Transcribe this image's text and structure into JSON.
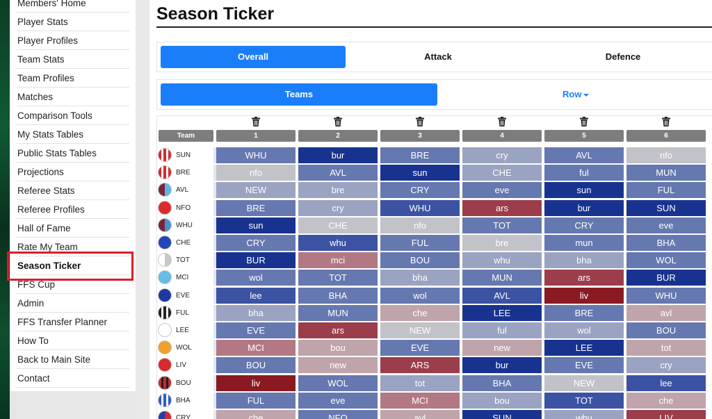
{
  "sidebar": {
    "items": [
      {
        "label": "Members' Home",
        "active": false
      },
      {
        "label": "Player Stats",
        "active": false
      },
      {
        "label": "Player Profiles",
        "active": false
      },
      {
        "label": "Team Stats",
        "active": false
      },
      {
        "label": "Team Profiles",
        "active": false
      },
      {
        "label": "Matches",
        "active": false
      },
      {
        "label": "Comparison Tools",
        "active": false
      },
      {
        "label": "My Stats Tables",
        "active": false
      },
      {
        "label": "Public Stats Tables",
        "active": false
      },
      {
        "label": "Projections",
        "active": false
      },
      {
        "label": "Referee Stats",
        "active": false
      },
      {
        "label": "Referee Profiles",
        "active": false
      },
      {
        "label": "Hall of Fame",
        "active": false
      },
      {
        "label": "Rate My Team",
        "active": false
      },
      {
        "label": "Season Ticker",
        "active": true
      },
      {
        "label": "FFS Cup",
        "active": false
      },
      {
        "label": "Admin",
        "active": false
      },
      {
        "label": "FFS Transfer Planner",
        "active": false
      },
      {
        "label": "How To",
        "active": false
      },
      {
        "label": "Back to Main Site",
        "active": false
      },
      {
        "label": "Contact",
        "active": false
      }
    ]
  },
  "header": {
    "title": "Season Ticker"
  },
  "tabs": [
    {
      "label": "Overall",
      "active": true
    },
    {
      "label": "Attack",
      "active": false
    },
    {
      "label": "Defence",
      "active": false
    }
  ],
  "subtabs": {
    "teams_label": "Teams",
    "row_label": "Row"
  },
  "table": {
    "team_header": "Team",
    "delete_icon": "trash-icon",
    "columns": [
      "1",
      "2",
      "3",
      "4",
      "5",
      "6"
    ],
    "rows": [
      {
        "team": "SUN",
        "badge": [
          "#d12a30",
          "#ffffff"
        ],
        "badge_style": "stripes",
        "fixtures": [
          "WHU",
          "bur",
          "BRE",
          "cry",
          "AVL",
          "nfo"
        ],
        "levels": [
          3,
          5,
          3,
          2,
          3,
          1
        ]
      },
      {
        "team": "BRE",
        "badge": [
          "#d12a30",
          "#ffffff"
        ],
        "badge_style": "stripes",
        "fixtures": [
          "nfo",
          "AVL",
          "sun",
          "CHE",
          "ful",
          "MUN"
        ],
        "levels": [
          1,
          3,
          5,
          2,
          3,
          3
        ]
      },
      {
        "team": "AVL",
        "badge": [
          "#7a263a",
          "#5fb4e6"
        ],
        "badge_style": "half",
        "fixtures": [
          "NEW",
          "bre",
          "CRY",
          "eve",
          "sun",
          "FUL"
        ],
        "levels": [
          2,
          2,
          3,
          3,
          5,
          3
        ]
      },
      {
        "team": "NFO",
        "badge": [
          "#dd2a2a",
          "#dd2a2a"
        ],
        "badge_style": "solid",
        "fixtures": [
          "BRE",
          "cry",
          "WHU",
          "ars",
          "bur",
          "SUN"
        ],
        "levels": [
          3,
          2,
          4,
          8,
          5,
          5
        ]
      },
      {
        "team": "WHU",
        "badge": [
          "#7a263a",
          "#4a90d0"
        ],
        "badge_style": "half",
        "fixtures": [
          "sun",
          "CHE",
          "nfo",
          "TOT",
          "CRY",
          "eve"
        ],
        "levels": [
          5,
          1,
          1,
          3,
          3,
          3
        ]
      },
      {
        "team": "CHE",
        "badge": [
          "#2345b5",
          "#2345b5"
        ],
        "badge_style": "solid",
        "fixtures": [
          "CRY",
          "whu",
          "FUL",
          "bre",
          "mun",
          "BHA"
        ],
        "levels": [
          3,
          4,
          3,
          1,
          3,
          3
        ]
      },
      {
        "team": "TOT",
        "badge": [
          "#ffffff",
          "#c8c8c8"
        ],
        "badge_style": "half",
        "fixtures": [
          "BUR",
          "mci",
          "BOU",
          "whu",
          "bha",
          "WOL"
        ],
        "levels": [
          5,
          7,
          3,
          2,
          2,
          3
        ]
      },
      {
        "team": "MCI",
        "badge": [
          "#67bde8",
          "#67bde8"
        ],
        "badge_style": "solid",
        "fixtures": [
          "wol",
          "TOT",
          "bha",
          "MUN",
          "ars",
          "BUR"
        ],
        "levels": [
          3,
          3,
          2,
          3,
          8,
          5
        ]
      },
      {
        "team": "EVE",
        "badge": [
          "#1d3aa0",
          "#1d3aa0"
        ],
        "badge_style": "solid",
        "fixtures": [
          "lee",
          "BHA",
          "wol",
          "AVL",
          "liv",
          "WHU"
        ],
        "levels": [
          4,
          3,
          3,
          4,
          9,
          3
        ]
      },
      {
        "team": "FUL",
        "badge": [
          "#222222",
          "#ffffff"
        ],
        "badge_style": "stripes",
        "fixtures": [
          "bha",
          "MUN",
          "che",
          "LEE",
          "BRE",
          "avl"
        ],
        "levels": [
          2,
          3,
          6,
          5,
          3,
          6
        ]
      },
      {
        "team": "LEE",
        "badge": [
          "#ffffff",
          "#ffffff"
        ],
        "badge_style": "solid",
        "fixtures": [
          "EVE",
          "ars",
          "NEW",
          "ful",
          "wol",
          "BOU"
        ],
        "levels": [
          3,
          8,
          1,
          2,
          2,
          3
        ]
      },
      {
        "team": "WOL",
        "badge": [
          "#f0a030",
          "#f0a030"
        ],
        "badge_style": "solid",
        "fixtures": [
          "MCI",
          "bou",
          "EVE",
          "new",
          "LEE",
          "tot"
        ],
        "levels": [
          7,
          6,
          3,
          6,
          5,
          6
        ]
      },
      {
        "team": "LIV",
        "badge": [
          "#d42a30",
          "#d42a30"
        ],
        "badge_style": "solid",
        "fixtures": [
          "BOU",
          "new",
          "ARS",
          "bur",
          "EVE",
          "cry"
        ],
        "levels": [
          3,
          6,
          8,
          5,
          3,
          2
        ]
      },
      {
        "team": "BOU",
        "badge": [
          "#c42a30",
          "#222222"
        ],
        "badge_style": "stripes",
        "fixtures": [
          "liv",
          "WOL",
          "tot",
          "BHA",
          "NEW",
          "lee"
        ],
        "levels": [
          9,
          3,
          2,
          3,
          1,
          4
        ]
      },
      {
        "team": "BHA",
        "badge": [
          "#2a5cc8",
          "#ffffff"
        ],
        "badge_style": "stripes",
        "fixtures": [
          "FUL",
          "eve",
          "MCI",
          "bou",
          "TOT",
          "che"
        ],
        "levels": [
          3,
          3,
          7,
          2,
          4,
          6
        ]
      },
      {
        "team": "CRY",
        "badge": [
          "#1f3fa8",
          "#d12a30"
        ],
        "badge_style": "half",
        "fixtures": [
          "che",
          "NFO",
          "avl",
          "SUN",
          "whu",
          "LIV"
        ],
        "levels": [
          6,
          3,
          6,
          5,
          2,
          8
        ]
      }
    ]
  },
  "colors": {
    "accent": "#1a7efb",
    "highlight": "#d61f2a"
  }
}
